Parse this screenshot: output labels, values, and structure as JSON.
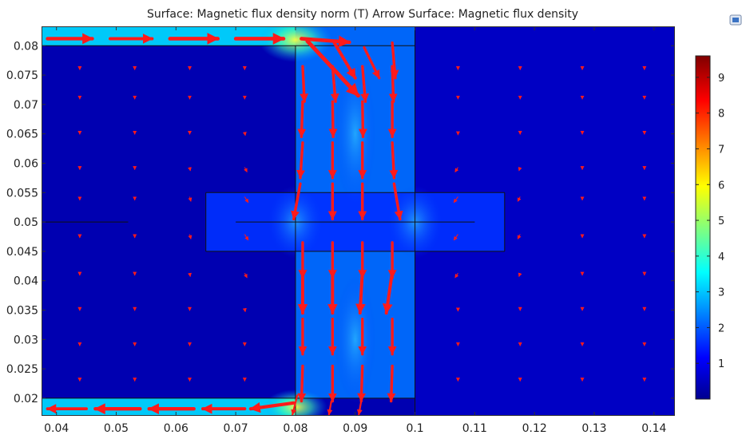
{
  "chart_data": {
    "type": "heatmap",
    "title": "Surface: Magnetic flux density norm (T)  Arrow Surface: Magnetic flux density",
    "xlabel": "",
    "ylabel": "",
    "xlim": [
      0.0375,
      0.1435
    ],
    "ylim": [
      0.017,
      0.0833
    ],
    "x_ticks": [
      "0.04",
      "0.05",
      "0.06",
      "0.07",
      "0.08",
      "0.09",
      "0.1",
      "0.11",
      "0.12",
      "0.13",
      "0.14"
    ],
    "y_ticks": [
      "0.02",
      "0.025",
      "0.03",
      "0.035",
      "0.04",
      "0.045",
      "0.05",
      "0.055",
      "0.06",
      "0.065",
      "0.07",
      "0.075",
      "0.08"
    ],
    "colorbar": {
      "min": 0,
      "max": 9.6,
      "ticks": [
        "1",
        "2",
        "3",
        "4",
        "5",
        "6",
        "7",
        "8",
        "9"
      ],
      "colormap": "rainbow",
      "stops": [
        "#00008f",
        "#0000ff",
        "#00ffff",
        "#ffff00",
        "#ff0000",
        "#800000"
      ]
    },
    "arrow_color": "#ff1a1a",
    "grid": false,
    "legend": "colorbar-right",
    "regions": [
      {
        "x0": 0.0375,
        "x1": 0.08,
        "y0": 0.08,
        "y1": 0.0833,
        "b": 3.2
      },
      {
        "x0": 0.0375,
        "x1": 0.08,
        "y0": 0.017,
        "y1": 0.02,
        "b": 3.2
      },
      {
        "x0": 0.08,
        "x1": 0.1,
        "y0": 0.02,
        "y1": 0.0833,
        "b": 2.2
      },
      {
        "x0": 0.065,
        "x1": 0.115,
        "y0": 0.045,
        "y1": 0.055,
        "b": 1.6
      }
    ],
    "outlines": [
      {
        "x0": 0.0375,
        "x1": 0.1,
        "y0": 0.08,
        "y1": 0.08
      },
      {
        "x0": 0.0375,
        "x1": 0.1,
        "y0": 0.02,
        "y1": 0.02
      },
      {
        "x0": 0.08,
        "x1": 0.08,
        "y0": 0.017,
        "y1": 0.08
      },
      {
        "x0": 0.1,
        "x1": 0.1,
        "y0": 0.017,
        "y1": 0.0833
      },
      {
        "x0": 0.065,
        "x1": 0.115,
        "y0": 0.045,
        "y1": 0.045
      },
      {
        "x0": 0.065,
        "x1": 0.115,
        "y0": 0.055,
        "y1": 0.055
      },
      {
        "x0": 0.065,
        "x1": 0.065,
        "y0": 0.045,
        "y1": 0.055
      },
      {
        "x0": 0.115,
        "x1": 0.115,
        "y0": 0.045,
        "y1": 0.055
      },
      {
        "x0": 0.0375,
        "x1": 0.052,
        "y0": 0.05,
        "y1": 0.05
      },
      {
        "x0": 0.07,
        "x1": 0.11,
        "y0": 0.05,
        "y1": 0.05
      }
    ],
    "arrows_strong": [
      [
        0.0385,
        0.0812,
        0.046,
        0.0812
      ],
      [
        0.049,
        0.0812,
        0.056,
        0.0812
      ],
      [
        0.059,
        0.0812,
        0.067,
        0.0812
      ],
      [
        0.07,
        0.0812,
        0.078,
        0.0812
      ],
      [
        0.081,
        0.0812,
        0.089,
        0.0806
      ],
      [
        0.082,
        0.0808,
        0.0905,
        0.0715
      ],
      [
        0.0865,
        0.0805,
        0.09,
        0.0745
      ],
      [
        0.0915,
        0.0797,
        0.094,
        0.0745
      ],
      [
        0.0962,
        0.0805,
        0.0967,
        0.0745
      ],
      [
        0.0812,
        0.0765,
        0.0815,
        0.0705
      ],
      [
        0.0862,
        0.0765,
        0.0867,
        0.0705
      ],
      [
        0.0912,
        0.0765,
        0.0917,
        0.0705
      ],
      [
        0.0962,
        0.0765,
        0.0964,
        0.0705
      ],
      [
        0.0812,
        0.0705,
        0.081,
        0.0645
      ],
      [
        0.0862,
        0.0705,
        0.0863,
        0.0645
      ],
      [
        0.0912,
        0.0705,
        0.0913,
        0.0645
      ],
      [
        0.0962,
        0.0705,
        0.0962,
        0.0645
      ],
      [
        0.0812,
        0.0635,
        0.0808,
        0.0575
      ],
      [
        0.0862,
        0.0635,
        0.0862,
        0.0575
      ],
      [
        0.0912,
        0.0635,
        0.0912,
        0.0575
      ],
      [
        0.0962,
        0.0635,
        0.0965,
        0.0575
      ],
      [
        0.0808,
        0.0565,
        0.0797,
        0.0505
      ],
      [
        0.0862,
        0.0565,
        0.0862,
        0.0505
      ],
      [
        0.0912,
        0.0565,
        0.0912,
        0.0505
      ],
      [
        0.0965,
        0.0565,
        0.0975,
        0.0505
      ],
      [
        0.0812,
        0.0465,
        0.0812,
        0.0405
      ],
      [
        0.0862,
        0.0465,
        0.0862,
        0.0405
      ],
      [
        0.0912,
        0.0465,
        0.0912,
        0.0405
      ],
      [
        0.0962,
        0.0465,
        0.0962,
        0.0405
      ],
      [
        0.0812,
        0.0415,
        0.0812,
        0.0345
      ],
      [
        0.0862,
        0.0415,
        0.0862,
        0.0345
      ],
      [
        0.0912,
        0.0415,
        0.0908,
        0.0345
      ],
      [
        0.0962,
        0.0415,
        0.0952,
        0.0345
      ],
      [
        0.0812,
        0.0335,
        0.0812,
        0.0275
      ],
      [
        0.0862,
        0.0335,
        0.0862,
        0.0275
      ],
      [
        0.0912,
        0.0335,
        0.0912,
        0.0275
      ],
      [
        0.0962,
        0.0335,
        0.0962,
        0.0275
      ],
      [
        0.0812,
        0.0255,
        0.081,
        0.0195
      ],
      [
        0.0862,
        0.0255,
        0.0862,
        0.0195
      ],
      [
        0.0912,
        0.0255,
        0.091,
        0.0195
      ],
      [
        0.0962,
        0.0255,
        0.096,
        0.0195
      ],
      [
        0.0803,
        0.0205,
        0.0795,
        0.0172
      ],
      [
        0.086,
        0.0195,
        0.0856,
        0.0172
      ],
      [
        0.091,
        0.0195,
        0.0906,
        0.0172
      ],
      [
        0.0797,
        0.0192,
        0.0725,
        0.0182
      ],
      [
        0.0715,
        0.0182,
        0.0645,
        0.0182
      ],
      [
        0.063,
        0.0182,
        0.0555,
        0.0182
      ],
      [
        0.054,
        0.0182,
        0.0465,
        0.0182
      ],
      [
        0.045,
        0.0182,
        0.0385,
        0.0182
      ]
    ],
    "arrows_weak": [
      [
        0.0439,
        0.0763,
        0.0439,
        0.0759
      ],
      [
        0.0531,
        0.0763,
        0.0531,
        0.0759
      ],
      [
        0.0623,
        0.0763,
        0.0623,
        0.0759
      ],
      [
        0.0715,
        0.0763,
        0.0715,
        0.0759
      ],
      [
        0.1072,
        0.0763,
        0.1072,
        0.0759
      ],
      [
        0.1176,
        0.0763,
        0.1176,
        0.0759
      ],
      [
        0.128,
        0.0763,
        0.128,
        0.0759
      ],
      [
        0.1384,
        0.0763,
        0.1384,
        0.0759
      ],
      [
        0.0439,
        0.0713,
        0.0439,
        0.0709
      ],
      [
        0.0531,
        0.0713,
        0.0531,
        0.0709
      ],
      [
        0.0623,
        0.0713,
        0.0623,
        0.0709
      ],
      [
        0.0715,
        0.0713,
        0.0715,
        0.0709
      ],
      [
        0.1072,
        0.0713,
        0.1072,
        0.0709
      ],
      [
        0.1176,
        0.0713,
        0.1176,
        0.0709
      ],
      [
        0.128,
        0.0713,
        0.128,
        0.0709
      ],
      [
        0.1384,
        0.0713,
        0.1384,
        0.0709
      ],
      [
        0.0439,
        0.0653,
        0.0439,
        0.0649
      ],
      [
        0.0531,
        0.0653,
        0.0531,
        0.0649
      ],
      [
        0.0623,
        0.0653,
        0.0623,
        0.0649
      ],
      [
        0.0715,
        0.0653,
        0.0716,
        0.0647
      ],
      [
        0.1072,
        0.0653,
        0.1072,
        0.0648
      ],
      [
        0.1176,
        0.0653,
        0.1176,
        0.0649
      ],
      [
        0.128,
        0.0653,
        0.128,
        0.0649
      ],
      [
        0.1384,
        0.0653,
        0.1384,
        0.0649
      ],
      [
        0.0439,
        0.0593,
        0.0439,
        0.0589
      ],
      [
        0.0531,
        0.0593,
        0.0531,
        0.0589
      ],
      [
        0.0623,
        0.0593,
        0.0624,
        0.0587
      ],
      [
        0.0715,
        0.0593,
        0.0719,
        0.0585
      ],
      [
        0.1072,
        0.0593,
        0.1067,
        0.0585
      ],
      [
        0.1176,
        0.0593,
        0.1174,
        0.0587
      ],
      [
        0.128,
        0.0593,
        0.128,
        0.0589
      ],
      [
        0.1384,
        0.0593,
        0.1384,
        0.0589
      ],
      [
        0.0439,
        0.0543,
        0.0439,
        0.0537
      ],
      [
        0.0531,
        0.0543,
        0.0531,
        0.0537
      ],
      [
        0.0623,
        0.0543,
        0.0625,
        0.0535
      ],
      [
        0.0715,
        0.0543,
        0.0721,
        0.0533
      ],
      [
        0.1072,
        0.0543,
        0.1065,
        0.0533
      ],
      [
        0.1176,
        0.0543,
        0.1172,
        0.0535
      ],
      [
        0.128,
        0.0543,
        0.128,
        0.0537
      ],
      [
        0.1384,
        0.0543,
        0.1384,
        0.0537
      ],
      [
        0.0439,
        0.0479,
        0.0439,
        0.0473
      ],
      [
        0.0531,
        0.0479,
        0.0531,
        0.0473
      ],
      [
        0.0623,
        0.0479,
        0.0625,
        0.0471
      ],
      [
        0.0715,
        0.0479,
        0.0721,
        0.0469
      ],
      [
        0.1072,
        0.0479,
        0.1065,
        0.0469
      ],
      [
        0.1176,
        0.0479,
        0.1172,
        0.0471
      ],
      [
        0.128,
        0.0479,
        0.128,
        0.0473
      ],
      [
        0.1384,
        0.0479,
        0.1384,
        0.0473
      ],
      [
        0.0439,
        0.0413,
        0.0439,
        0.0409
      ],
      [
        0.0531,
        0.0413,
        0.0531,
        0.0409
      ],
      [
        0.0623,
        0.0413,
        0.0624,
        0.0407
      ],
      [
        0.0715,
        0.0413,
        0.0719,
        0.0405
      ],
      [
        0.1072,
        0.0413,
        0.1067,
        0.0405
      ],
      [
        0.1176,
        0.0413,
        0.1174,
        0.0407
      ],
      [
        0.128,
        0.0413,
        0.128,
        0.0409
      ],
      [
        0.1384,
        0.0413,
        0.1384,
        0.0409
      ],
      [
        0.0439,
        0.0353,
        0.0439,
        0.0349
      ],
      [
        0.0531,
        0.0353,
        0.0531,
        0.0349
      ],
      [
        0.0623,
        0.0353,
        0.0623,
        0.0349
      ],
      [
        0.0715,
        0.0353,
        0.0716,
        0.0347
      ],
      [
        0.1072,
        0.0353,
        0.1072,
        0.0348
      ],
      [
        0.1176,
        0.0353,
        0.1176,
        0.0349
      ],
      [
        0.128,
        0.0353,
        0.128,
        0.0349
      ],
      [
        0.1384,
        0.0353,
        0.1384,
        0.0349
      ],
      [
        0.0439,
        0.0293,
        0.0439,
        0.0289
      ],
      [
        0.0531,
        0.0293,
        0.0531,
        0.0289
      ],
      [
        0.0623,
        0.0293,
        0.0623,
        0.0289
      ],
      [
        0.0715,
        0.0293,
        0.0715,
        0.0289
      ],
      [
        0.1072,
        0.0293,
        0.1072,
        0.0289
      ],
      [
        0.1176,
        0.0293,
        0.1176,
        0.0289
      ],
      [
        0.128,
        0.0293,
        0.128,
        0.0289
      ],
      [
        0.1384,
        0.0293,
        0.1384,
        0.0289
      ],
      [
        0.0439,
        0.0233,
        0.0439,
        0.0229
      ],
      [
        0.0531,
        0.0233,
        0.0531,
        0.0229
      ],
      [
        0.0623,
        0.0233,
        0.0623,
        0.0229
      ],
      [
        0.0715,
        0.0233,
        0.0715,
        0.0229
      ],
      [
        0.1072,
        0.0233,
        0.1072,
        0.0229
      ],
      [
        0.1176,
        0.0233,
        0.1176,
        0.0229
      ],
      [
        0.128,
        0.0233,
        0.128,
        0.0229
      ],
      [
        0.1384,
        0.0233,
        0.1384,
        0.0229
      ]
    ]
  }
}
